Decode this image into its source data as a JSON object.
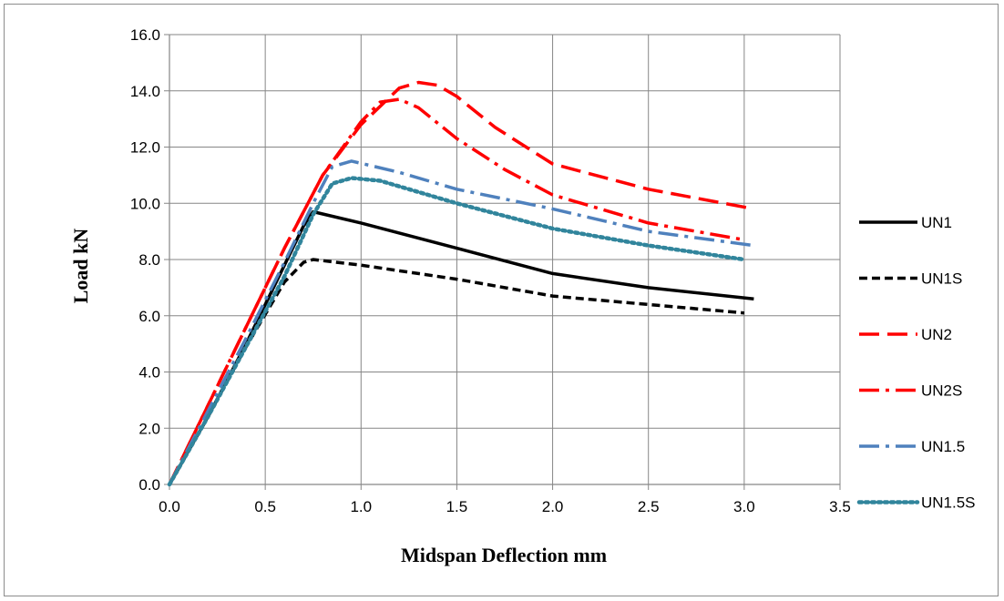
{
  "chart_data": {
    "type": "line",
    "title": "",
    "xlabel": "Midspan Deflection mm",
    "ylabel": "Load kN",
    "xlim": [
      0,
      3.5
    ],
    "ylim": [
      0,
      16
    ],
    "x_ticks": [
      "0.0",
      "0.5",
      "1.0",
      "1.5",
      "2.0",
      "2.5",
      "3.0",
      "3.5"
    ],
    "y_ticks": [
      "0.0",
      "2.0",
      "4.0",
      "6.0",
      "8.0",
      "10.0",
      "12.0",
      "14.0",
      "16.0"
    ],
    "grid": true,
    "legend_position": "right",
    "series": [
      {
        "name": "UN1",
        "color": "#000000",
        "dash": "solid",
        "x": [
          0,
          0.2,
          0.4,
          0.6,
          0.7,
          0.75,
          1.0,
          1.5,
          2.0,
          2.5,
          3.05
        ],
        "y": [
          0,
          2.4,
          5.0,
          7.8,
          9.2,
          9.7,
          9.3,
          8.4,
          7.5,
          7.0,
          6.6
        ]
      },
      {
        "name": "UN1S",
        "color": "#000000",
        "dash": "dash",
        "x": [
          0,
          0.2,
          0.4,
          0.6,
          0.7,
          0.75,
          1.0,
          1.5,
          2.0,
          2.5,
          3.0
        ],
        "y": [
          0,
          2.4,
          4.9,
          7.2,
          7.9,
          8.0,
          7.8,
          7.3,
          6.7,
          6.4,
          6.1
        ]
      },
      {
        "name": "UN2",
        "color": "#ff0000",
        "dash": "longdash",
        "x": [
          0,
          0.2,
          0.4,
          0.6,
          0.8,
          1.0,
          1.2,
          1.3,
          1.4,
          1.5,
          1.7,
          2.0,
          2.5,
          3.05
        ],
        "y": [
          0,
          2.8,
          5.6,
          8.4,
          11.0,
          12.8,
          14.1,
          14.3,
          14.2,
          13.8,
          12.7,
          11.4,
          10.5,
          9.8
        ]
      },
      {
        "name": "UN2S",
        "color": "#ff0000",
        "dash": "dashdot",
        "x": [
          0,
          0.2,
          0.4,
          0.6,
          0.8,
          1.0,
          1.1,
          1.2,
          1.3,
          1.5,
          1.75,
          2.0,
          2.5,
          3.0
        ],
        "y": [
          0,
          2.8,
          5.6,
          8.4,
          11.0,
          12.9,
          13.6,
          13.7,
          13.4,
          12.3,
          11.2,
          10.3,
          9.3,
          8.7
        ]
      },
      {
        "name": "UN1.5",
        "color": "#4f81bd",
        "dash": "dashdot",
        "x": [
          0,
          0.2,
          0.4,
          0.6,
          0.75,
          0.85,
          0.95,
          1.2,
          1.5,
          2.0,
          2.5,
          3.05
        ],
        "y": [
          0,
          2.6,
          5.2,
          7.9,
          10.0,
          11.3,
          11.5,
          11.1,
          10.5,
          9.8,
          9.0,
          8.5
        ]
      },
      {
        "name": "UN1.5S",
        "color": "#31859c",
        "dash": "dot",
        "x": [
          0,
          0.2,
          0.4,
          0.6,
          0.75,
          0.85,
          0.95,
          1.1,
          1.5,
          2.0,
          2.5,
          3.0
        ],
        "y": [
          0,
          2.4,
          4.9,
          7.4,
          9.6,
          10.7,
          10.9,
          10.8,
          10.0,
          9.1,
          8.5,
          8.0
        ]
      }
    ]
  }
}
